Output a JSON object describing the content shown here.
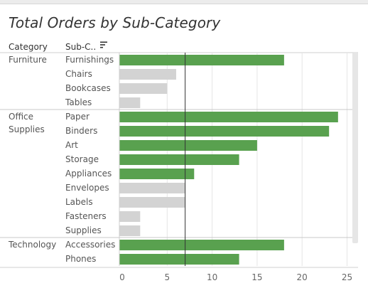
{
  "title": "Total Orders by Sub-Category",
  "columns": {
    "category": "Category",
    "subcategory": "Sub-C.."
  },
  "colors": {
    "highlight": "#59a14f",
    "muted": "#d3d3d3",
    "reference_line": "#333333",
    "grid": "#e5e5e5",
    "text": "#555555"
  },
  "chart_data": {
    "type": "bar",
    "orientation": "horizontal",
    "title": "Total Orders by Sub-Category",
    "xlim": [
      0,
      26
    ],
    "xticks": [
      0,
      5,
      10,
      15,
      20,
      25
    ],
    "reference_line": 7,
    "grid": true,
    "groups": [
      {
        "category": "Furniture",
        "category_lines": [
          "Furniture"
        ],
        "items": [
          {
            "label": "Furnishings",
            "value": 18,
            "highlight": true
          },
          {
            "label": "Chairs",
            "value": 6,
            "highlight": false
          },
          {
            "label": "Bookcases",
            "value": 5,
            "highlight": false
          },
          {
            "label": "Tables",
            "value": 2,
            "highlight": false
          }
        ]
      },
      {
        "category": "Office Supplies",
        "category_lines": [
          "Office",
          "Supplies"
        ],
        "items": [
          {
            "label": "Paper",
            "value": 24,
            "highlight": true
          },
          {
            "label": "Binders",
            "value": 23,
            "highlight": true
          },
          {
            "label": "Art",
            "value": 15,
            "highlight": true
          },
          {
            "label": "Storage",
            "value": 13,
            "highlight": true
          },
          {
            "label": "Appliances",
            "value": 8,
            "highlight": true
          },
          {
            "label": "Envelopes",
            "value": 7,
            "highlight": false
          },
          {
            "label": "Labels",
            "value": 7,
            "highlight": false
          },
          {
            "label": "Fasteners",
            "value": 2,
            "highlight": false
          },
          {
            "label": "Supplies",
            "value": 2,
            "highlight": false
          }
        ]
      },
      {
        "category": "Technology",
        "category_lines": [
          "Technology"
        ],
        "items": [
          {
            "label": "Accessories",
            "value": 18,
            "highlight": true
          },
          {
            "label": "Phones",
            "value": 13,
            "highlight": true
          }
        ]
      }
    ]
  }
}
